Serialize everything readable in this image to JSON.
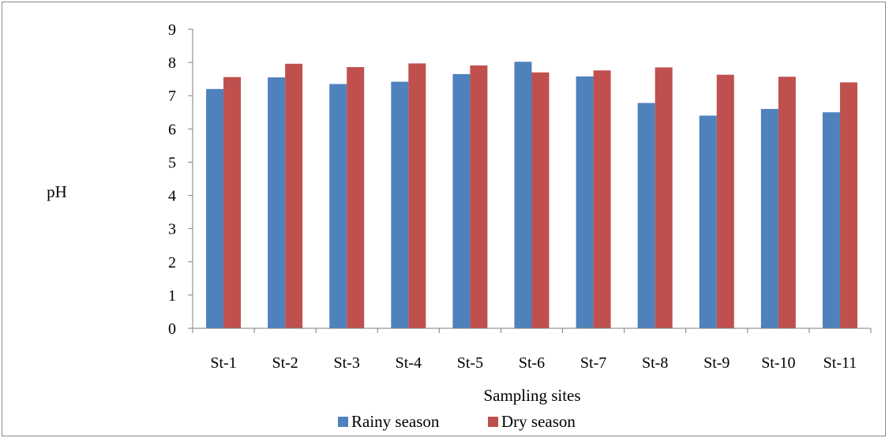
{
  "chart_data": {
    "type": "bar",
    "title": "",
    "xlabel": "Sampling sites",
    "ylabel": "pH",
    "ylim": [
      0,
      9
    ],
    "yticks": [
      0,
      1,
      2,
      3,
      4,
      5,
      6,
      7,
      8,
      9
    ],
    "grid": false,
    "legend_position": "bottom",
    "categories": [
      "St-1",
      "St-2",
      "St-3",
      "St-4",
      "St-5",
      "St-6",
      "St-7",
      "St-8",
      "St-9",
      "St-10",
      "St-11"
    ],
    "series": [
      {
        "name": "Rainy season",
        "color": "#4f81bd",
        "values": [
          7.2,
          7.55,
          7.35,
          7.42,
          7.65,
          8.02,
          7.58,
          6.78,
          6.4,
          6.6,
          6.5
        ]
      },
      {
        "name": "Dry season",
        "color": "#c0504d",
        "values": [
          7.56,
          7.96,
          7.86,
          7.97,
          7.91,
          7.7,
          7.76,
          7.85,
          7.63,
          7.57,
          7.4
        ]
      }
    ]
  }
}
